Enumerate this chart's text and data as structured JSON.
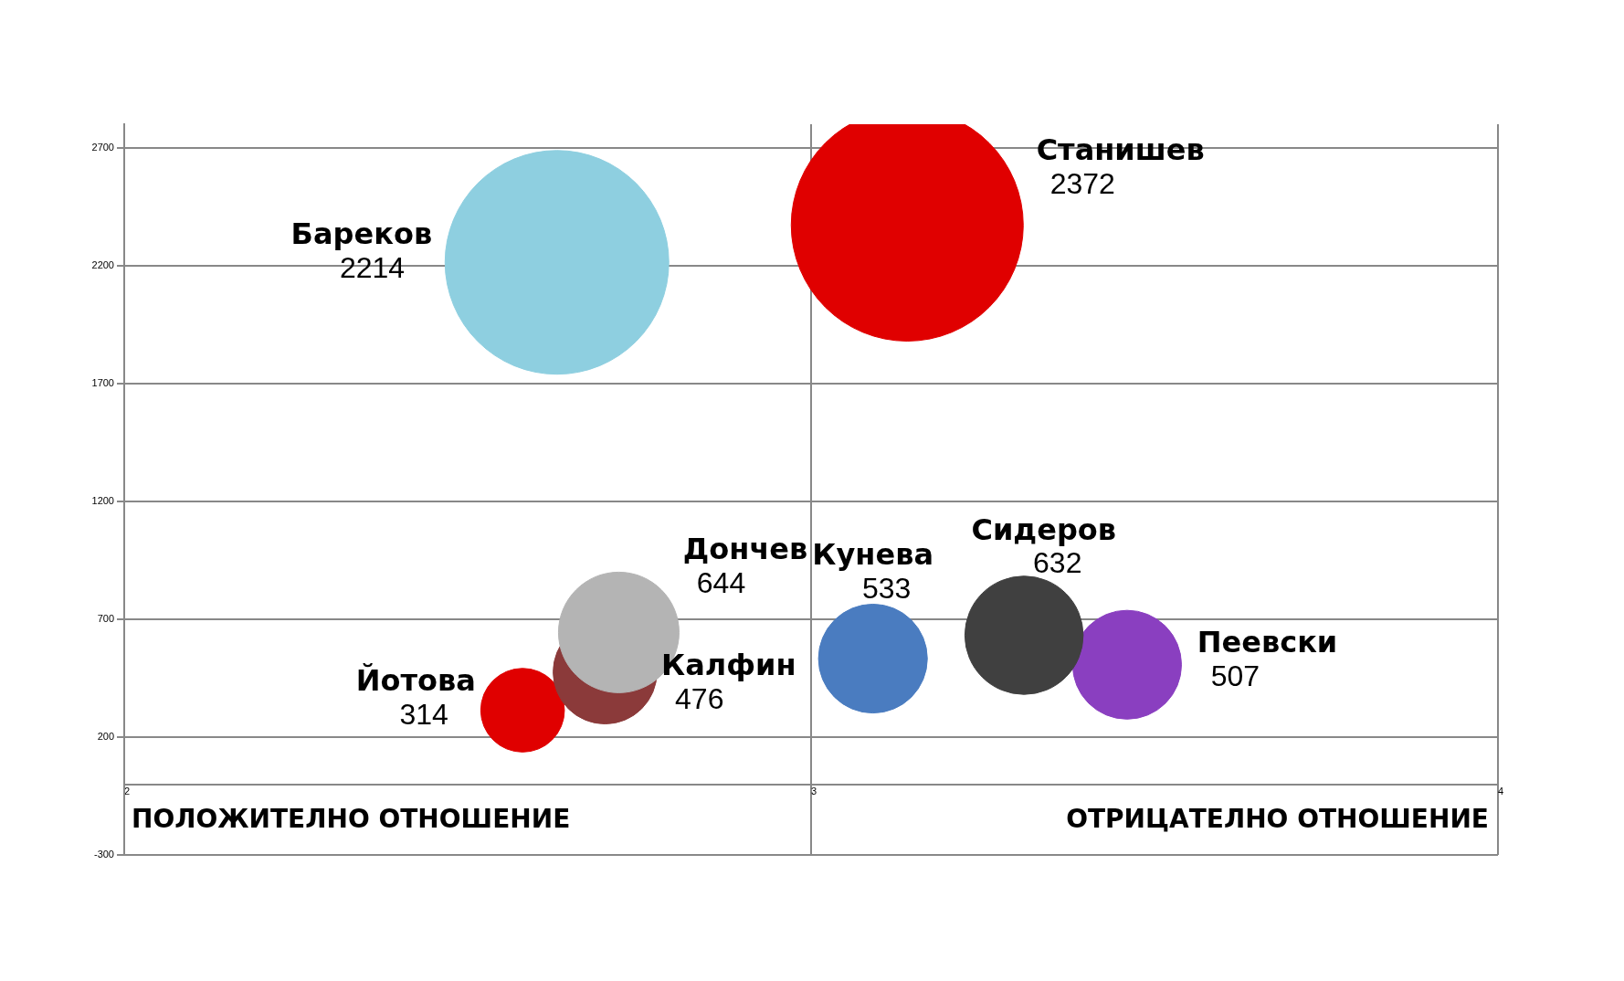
{
  "chart_data": {
    "type": "bubble",
    "xlim": [
      2,
      4
    ],
    "xticks": [
      2,
      3,
      4
    ],
    "ylim": [
      -300,
      2800
    ],
    "yticks": [
      -300,
      200,
      700,
      1200,
      1700,
      2200,
      2700
    ],
    "grid": true,
    "legend": false,
    "data_labels": true,
    "series": [
      {
        "name": "Бареков",
        "color": "#8ecfe0",
        "x": [
          2.63
        ],
        "values": [
          2214
        ],
        "sizes": [
          0.93
        ]
      },
      {
        "name": "Станишев",
        "color": "#e00000",
        "x": [
          3.14
        ],
        "values": [
          2372
        ],
        "sizes": [
          1
        ]
      },
      {
        "name": "Дончев",
        "color": "#b4b4b4",
        "x": [
          2.72
        ],
        "values": [
          644
        ],
        "sizes": [
          0.27
        ]
      },
      {
        "name": "Калфин",
        "color": "#8b3a3a",
        "x": [
          2.7
        ],
        "values": [
          476
        ],
        "sizes": [
          0.2
        ]
      },
      {
        "name": "Йотова",
        "color": "#e00000",
        "x": [
          2.58
        ],
        "values": [
          314
        ],
        "sizes": [
          0.13
        ]
      },
      {
        "name": "Кунева",
        "color": "#4a7cc0",
        "x": [
          3.09
        ],
        "values": [
          533
        ],
        "sizes": [
          0.22
        ]
      },
      {
        "name": "Сидеров",
        "color": "#404040",
        "x": [
          3.31
        ],
        "values": [
          632
        ],
        "sizes": [
          0.26
        ]
      },
      {
        "name": "Пеевски",
        "color": "#8a3fc0",
        "x": [
          3.46
        ],
        "values": [
          507
        ],
        "sizes": [
          0.22
        ]
      }
    ],
    "annotations": [
      "ПОЛОЖИТЕЛНО ОТНОШЕНИЕ",
      "ОТРИЦАТЕЛНО ОТНОШЕНИЕ"
    ]
  }
}
